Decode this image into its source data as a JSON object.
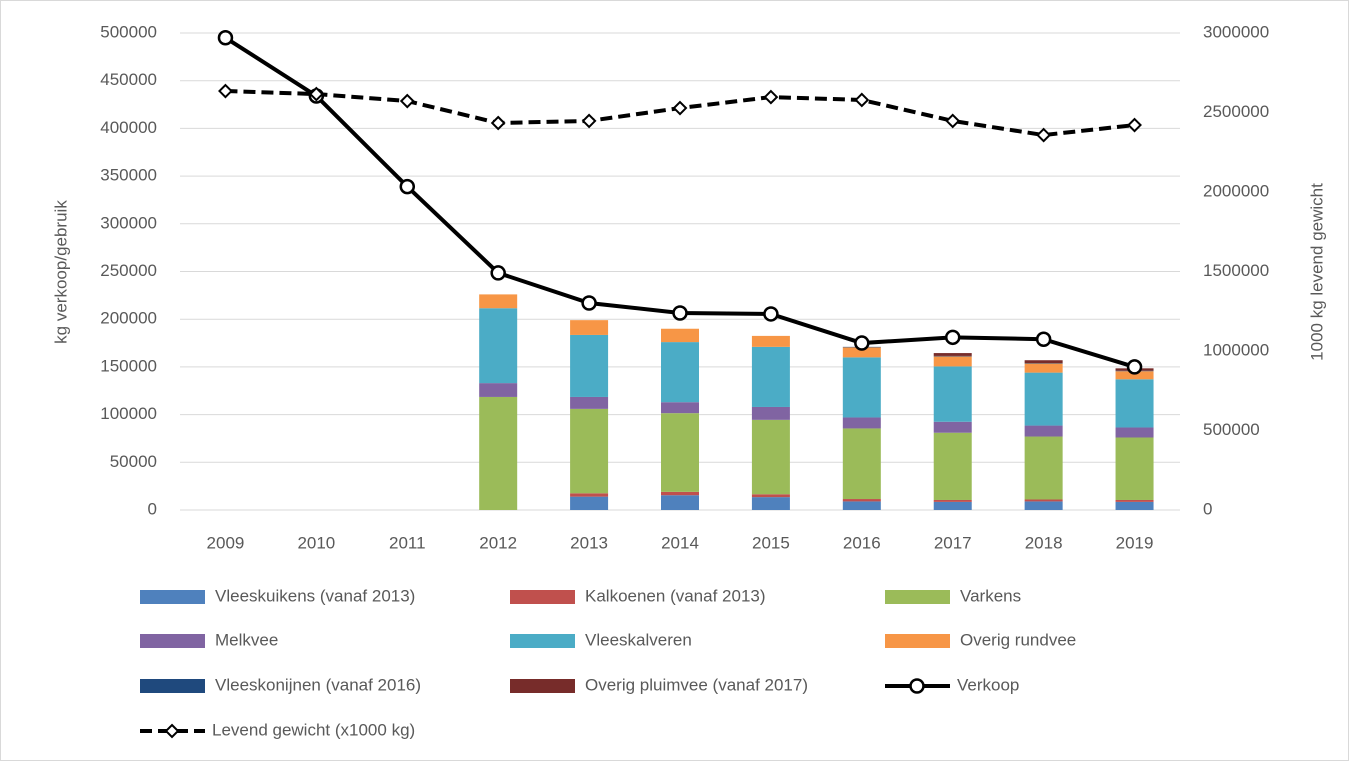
{
  "chart_data": {
    "type": "bar",
    "stacked": true,
    "y_label": "kg verkoop/gebruik",
    "y2_label": "1000 kg levend gewicht",
    "categories": [
      "2009",
      "2010",
      "2011",
      "2012",
      "2013",
      "2014",
      "2015",
      "2016",
      "2017",
      "2018",
      "2019"
    ],
    "ylim": [
      0,
      500000
    ],
    "yticks": [
      0,
      50000,
      100000,
      150000,
      200000,
      250000,
      300000,
      350000,
      400000,
      450000,
      500000
    ],
    "y2lim": [
      0,
      3000000
    ],
    "y2ticks": [
      0,
      500000,
      1000000,
      1500000,
      2000000,
      2500000,
      3000000
    ],
    "grid": true,
    "series": [
      {
        "name": "Vleeskuikens (vanaf 2013)",
        "color": "#4f81bd",
        "values": [
          null,
          null,
          null,
          null,
          14000,
          15500,
          13500,
          9000,
          8500,
          9000,
          8500
        ]
      },
      {
        "name": "Kalkoenen (vanaf 2013)",
        "color": "#c0504d",
        "values": [
          null,
          null,
          null,
          null,
          3500,
          3500,
          3000,
          2500,
          2000,
          2000,
          2000
        ]
      },
      {
        "name": "Varkens",
        "color": "#9bbb59",
        "values": [
          null,
          null,
          null,
          118500,
          88500,
          82500,
          78000,
          74000,
          70500,
          66000,
          65500
        ]
      },
      {
        "name": "Melkvee",
        "color": "#8064a2",
        "values": [
          null,
          null,
          null,
          14500,
          12500,
          11500,
          13500,
          11500,
          11500,
          11500,
          10500
        ]
      },
      {
        "name": "Vleeskalveren",
        "color": "#4bacc6",
        "values": [
          null,
          null,
          null,
          78500,
          65000,
          63000,
          63000,
          63000,
          58000,
          55500,
          50500
        ]
      },
      {
        "name": "Overig rundvee",
        "color": "#f79646",
        "values": [
          null,
          null,
          null,
          14500,
          15500,
          14000,
          11500,
          10500,
          10500,
          9500,
          8500
        ]
      },
      {
        "name": "Vleeskonijnen (vanaf 2016)",
        "color": "#1f497d",
        "values": [
          null,
          null,
          null,
          null,
          null,
          null,
          null,
          500,
          500,
          500,
          500
        ]
      },
      {
        "name": "Overig pluimvee (vanaf 2017)",
        "color": "#772c2a",
        "values": [
          null,
          null,
          null,
          null,
          null,
          null,
          null,
          null,
          3000,
          3000,
          2500
        ]
      },
      {
        "name": "Verkoop",
        "type": "line",
        "color": "#000000",
        "marker": "circle",
        "values": [
          495000,
          434000,
          339000,
          248500,
          217000,
          206500,
          205500,
          175000,
          181000,
          179000,
          150000
        ]
      },
      {
        "name": "Levend gewicht (x1000 kg)",
        "type": "line",
        "axis": "y2",
        "dashed": true,
        "color": "#000000",
        "marker": "diamond",
        "values": [
          2635000,
          2616000,
          2572000,
          2434000,
          2447000,
          2528000,
          2597000,
          2579000,
          2447000,
          2358000,
          2421000
        ]
      }
    ]
  }
}
